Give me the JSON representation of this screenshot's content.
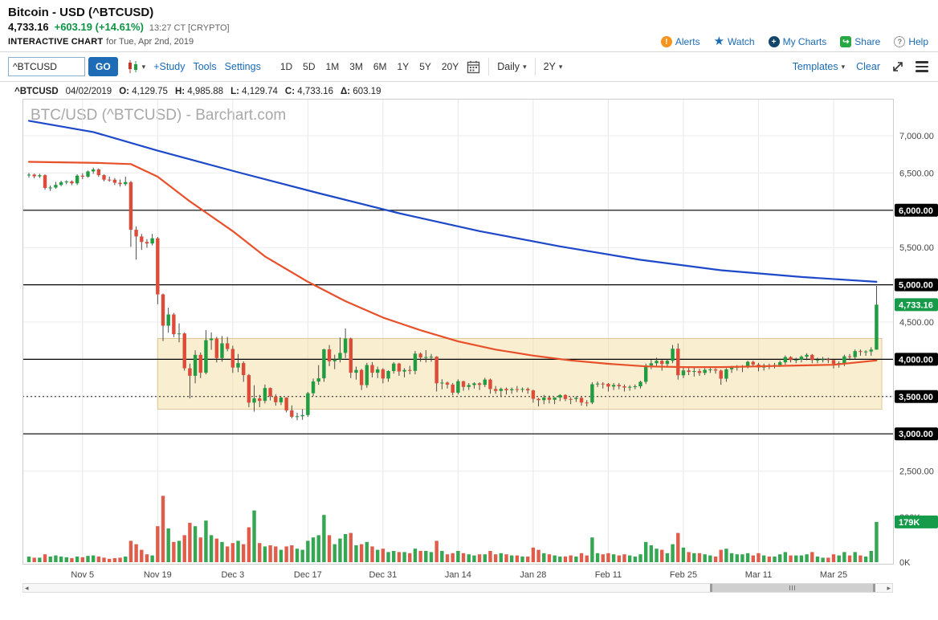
{
  "header": {
    "title": "Bitcoin - USD (^BTCUSD)",
    "price": "4,733.16",
    "change": "+603.19 (+14.61%)",
    "time_note": "13:27 CT [CRYPTO]",
    "section_label": "INTERACTIVE CHART",
    "section_date": "for Tue, Apr 2nd, 2019",
    "links": [
      {
        "label": "Alerts"
      },
      {
        "label": "Watch"
      },
      {
        "label": "My Charts"
      },
      {
        "label": "Share"
      },
      {
        "label": "Help"
      }
    ]
  },
  "toolbar": {
    "symbol_input": "^BTCUSD",
    "go_label": "GO",
    "study_label": "+Study",
    "tools_label": "Tools",
    "settings_label": "Settings",
    "ranges": [
      "1D",
      "5D",
      "1M",
      "3M",
      "6M",
      "1Y",
      "5Y",
      "20Y"
    ],
    "frequency": "Daily",
    "lookback": "2Y",
    "templates_label": "Templates",
    "clear_label": "Clear"
  },
  "ohlc": {
    "symbol": "^BTCUSD",
    "date": "04/02/2019",
    "o_label": "O:",
    "o": "4,129.75",
    "h_label": "H:",
    "h": "4,985.88",
    "l_label": "L:",
    "l": "4,129.74",
    "c_label": "C:",
    "c": "4,733.16",
    "d_label": "Δ:",
    "d": "603.19"
  },
  "colors": {
    "up": "#1f9d40",
    "down": "#dd4b39",
    "ma_slow_blue": "#1d49c9",
    "ma_fast_red": "#e8502a",
    "badge_green": "#169b4a",
    "badge_black": "#000000",
    "accent_blue": "#1a6bb5",
    "box_fill": "rgba(245,222,163,0.5)",
    "box_stroke": "#dcc globally"
  },
  "chart_data": {
    "type": "candlestick",
    "title": "BTC/USD (^BTCUSD) - Barchart.com",
    "frequency": "Daily",
    "price_axis": {
      "min": 2250,
      "max": 7490,
      "tick_step": 500
    },
    "y_labels": [
      {
        "value": 7000,
        "text": "7,000.00",
        "style": "plain"
      },
      {
        "value": 6500,
        "text": "6,500.00",
        "style": "plain"
      },
      {
        "value": 6000,
        "text": "6,000.00",
        "style": "black"
      },
      {
        "value": 5500,
        "text": "5,500.00",
        "style": "plain"
      },
      {
        "value": 5000,
        "text": "5,000.00",
        "style": "black"
      },
      {
        "value": 4733.16,
        "text": "4,733.16",
        "style": "green"
      },
      {
        "value": 4500,
        "text": "4,500.00",
        "style": "plain"
      },
      {
        "value": 4000,
        "text": "4,000.00",
        "style": "black"
      },
      {
        "value": 3500,
        "text": "3,500.00",
        "style": "black"
      },
      {
        "value": 3000,
        "text": "3,000.00",
        "style": "black"
      },
      {
        "value": 2500,
        "text": "2,500.00",
        "style": "plain"
      }
    ],
    "vol_labels": [
      {
        "vol": 200,
        "text": "200K",
        "style": "plain"
      },
      {
        "vol": 179,
        "text": "179K",
        "style": "green"
      },
      {
        "vol": 0,
        "text": "0K",
        "style": "plain"
      }
    ],
    "x_ticks": [
      {
        "i": 10,
        "label": "Nov 5"
      },
      {
        "i": 24,
        "label": "Nov 19"
      },
      {
        "i": 38,
        "label": "Dec 3"
      },
      {
        "i": 52,
        "label": "Dec 17"
      },
      {
        "i": 66,
        "label": "Dec 31"
      },
      {
        "i": 80,
        "label": "Jan 14"
      },
      {
        "i": 94,
        "label": "Jan 28"
      },
      {
        "i": 108,
        "label": "Feb 11"
      },
      {
        "i": 122,
        "label": "Feb 25"
      },
      {
        "i": 136,
        "label": "Mar 11"
      },
      {
        "i": 150,
        "label": "Mar 25"
      }
    ],
    "levels": {
      "solid_black": [
        6000,
        5000,
        4000,
        3000
      ],
      "dashed": [
        3500
      ]
    },
    "range_box": {
      "start_index": 24,
      "end_x": 1070,
      "price_top": 4280,
      "price_bottom": 3330
    },
    "overlays": {
      "blue_ma": [
        [
          0,
          7200
        ],
        [
          12,
          7050
        ],
        [
          24,
          6800
        ],
        [
          39,
          6510
        ],
        [
          54,
          6230
        ],
        [
          69,
          5960
        ],
        [
          84,
          5720
        ],
        [
          99,
          5515
        ],
        [
          114,
          5335
        ],
        [
          129,
          5195
        ],
        [
          144,
          5105
        ],
        [
          158,
          5040
        ]
      ],
      "red_ma": [
        [
          0,
          6650
        ],
        [
          13,
          6635
        ],
        [
          19,
          6620
        ],
        [
          24,
          6450
        ],
        [
          30,
          6120
        ],
        [
          38,
          5720
        ],
        [
          44,
          5380
        ],
        [
          52,
          5040
        ],
        [
          59,
          4780
        ],
        [
          66,
          4560
        ],
        [
          73,
          4390
        ],
        [
          80,
          4240
        ],
        [
          87,
          4130
        ],
        [
          94,
          4050
        ],
        [
          101,
          3985
        ],
        [
          108,
          3940
        ],
        [
          115,
          3905
        ],
        [
          122,
          3895
        ],
        [
          129,
          3895
        ],
        [
          136,
          3905
        ],
        [
          144,
          3918
        ],
        [
          150,
          3927
        ],
        [
          158,
          3985
        ]
      ]
    },
    "candles_format": [
      "open",
      "high",
      "low",
      "close",
      "volume_thousands"
    ],
    "candles": [
      [
        6470,
        6502,
        6438,
        6478,
        25
      ],
      [
        6478,
        6492,
        6428,
        6455,
        20
      ],
      [
        6455,
        6490,
        6433,
        6470,
        20
      ],
      [
        6470,
        6481,
        6275,
        6300,
        35
      ],
      [
        6300,
        6332,
        6258,
        6305,
        25
      ],
      [
        6305,
        6381,
        6288,
        6340,
        30
      ],
      [
        6340,
        6396,
        6322,
        6377,
        25
      ],
      [
        6377,
        6402,
        6348,
        6386,
        22
      ],
      [
        6386,
        6401,
        6338,
        6361,
        18
      ],
      [
        6361,
        6482,
        6339,
        6464,
        25
      ],
      [
        6464,
        6496,
        6418,
        6451,
        22
      ],
      [
        6451,
        6532,
        6438,
        6521,
        28
      ],
      [
        6521,
        6572,
        6488,
        6547,
        30
      ],
      [
        6547,
        6562,
        6448,
        6471,
        25
      ],
      [
        6471,
        6482,
        6388,
        6411,
        20
      ],
      [
        6411,
        6452,
        6383,
        6410,
        15
      ],
      [
        6410,
        6432,
        6338,
        6369,
        18
      ],
      [
        6369,
        6412,
        6318,
        6351,
        20
      ],
      [
        6351,
        6452,
        6328,
        6378,
        25
      ],
      [
        6378,
        6392,
        5508,
        5738,
        95
      ],
      [
        5738,
        5782,
        5338,
        5648,
        80
      ],
      [
        5648,
        5682,
        5468,
        5575,
        55
      ],
      [
        5575,
        5612,
        5498,
        5554,
        35
      ],
      [
        5554,
        5682,
        5528,
        5624,
        30
      ],
      [
        5624,
        5642,
        4738,
        4871,
        160
      ],
      [
        4871,
        4882,
        4244,
        4451,
        295
      ],
      [
        4451,
        4692,
        4358,
        4602,
        150
      ],
      [
        4602,
        4622,
        4298,
        4337,
        90
      ],
      [
        4337,
        4482,
        4228,
        4347,
        95
      ],
      [
        4347,
        4362,
        3848,
        3880,
        120
      ],
      [
        3880,
        3942,
        3475,
        3779,
        175
      ],
      [
        3779,
        4122,
        3678,
        4060,
        160
      ],
      [
        4060,
        4092,
        3748,
        3820,
        110
      ],
      [
        3820,
        4392,
        3798,
        4257,
        185
      ],
      [
        4257,
        4362,
        4128,
        4278,
        120
      ],
      [
        4278,
        4302,
        3958,
        4017,
        105
      ],
      [
        4017,
        4312,
        3968,
        4214,
        90
      ],
      [
        4214,
        4301,
        4108,
        4139,
        70
      ],
      [
        4139,
        4182,
        3818,
        3890,
        85
      ],
      [
        3890,
        4072,
        3828,
        3949,
        95
      ],
      [
        3949,
        3972,
        3698,
        3788,
        80
      ],
      [
        3788,
        3802,
        3358,
        3419,
        155
      ],
      [
        3419,
        3652,
        3298,
        3476,
        230
      ],
      [
        3476,
        3522,
        3358,
        3442,
        85
      ],
      [
        3442,
        3662,
        3408,
        3615,
        70
      ],
      [
        3615,
        3622,
        3448,
        3502,
        75
      ],
      [
        3502,
        3532,
        3378,
        3424,
        70
      ],
      [
        3424,
        3502,
        3388,
        3486,
        55
      ],
      [
        3486,
        3492,
        3288,
        3314,
        70
      ],
      [
        3314,
        3382,
        3208,
        3229,
        75
      ],
      [
        3229,
        3282,
        3183,
        3236,
        60
      ],
      [
        3236,
        3332,
        3188,
        3252,
        55
      ],
      [
        3252,
        3562,
        3228,
        3545,
        95
      ],
      [
        3545,
        3742,
        3508,
        3702,
        110
      ],
      [
        3702,
        3922,
        3658,
        3745,
        120
      ],
      [
        3745,
        4142,
        3698,
        4134,
        210
      ],
      [
        4134,
        4192,
        3908,
        3974,
        120
      ],
      [
        3974,
        4062,
        3868,
        3998,
        80
      ],
      [
        3998,
        4292,
        3958,
        4086,
        105
      ],
      [
        4086,
        4413,
        4018,
        4278,
        125
      ],
      [
        4278,
        4292,
        3748,
        3820,
        130
      ],
      [
        3820,
        3902,
        3728,
        3857,
        75
      ],
      [
        3857,
        3872,
        3588,
        3654,
        80
      ],
      [
        3654,
        3952,
        3618,
        3923,
        90
      ],
      [
        3923,
        3962,
        3758,
        3820,
        70
      ],
      [
        3820,
        3902,
        3748,
        3865,
        55
      ],
      [
        3865,
        3882,
        3678,
        3742,
        60
      ],
      [
        3742,
        3852,
        3698,
        3843,
        45
      ],
      [
        3843,
        3962,
        3808,
        3943,
        50
      ],
      [
        3943,
        3952,
        3778,
        3836,
        45
      ],
      [
        3836,
        3882,
        3758,
        3857,
        45
      ],
      [
        3857,
        3912,
        3798,
        3845,
        40
      ],
      [
        3845,
        4112,
        3798,
        4076,
        60
      ],
      [
        4076,
        4092,
        3968,
        4025,
        50
      ],
      [
        4025,
        4122,
        3958,
        4030,
        50
      ],
      [
        4030,
        4072,
        3968,
        4035,
        45
      ],
      [
        4035,
        4042,
        3568,
        3678,
        95
      ],
      [
        3678,
        3732,
        3598,
        3687,
        50
      ],
      [
        3687,
        3702,
        3608,
        3661,
        35
      ],
      [
        3661,
        3682,
        3518,
        3552,
        40
      ],
      [
        3552,
        3732,
        3528,
        3706,
        50
      ],
      [
        3706,
        3712,
        3578,
        3630,
        40
      ],
      [
        3630,
        3682,
        3588,
        3655,
        35
      ],
      [
        3655,
        3692,
        3608,
        3678,
        30
      ],
      [
        3678,
        3692,
        3588,
        3657,
        35
      ],
      [
        3657,
        3752,
        3628,
        3728,
        35
      ],
      [
        3728,
        3742,
        3538,
        3601,
        50
      ],
      [
        3601,
        3642,
        3538,
        3576,
        35
      ],
      [
        3576,
        3622,
        3508,
        3604,
        40
      ],
      [
        3604,
        3622,
        3528,
        3585,
        35
      ],
      [
        3585,
        3622,
        3538,
        3600,
        30
      ],
      [
        3600,
        3642,
        3558,
        3599,
        30
      ],
      [
        3599,
        3622,
        3558,
        3602,
        25
      ],
      [
        3602,
        3622,
        3538,
        3583,
        25
      ],
      [
        3583,
        3592,
        3418,
        3470,
        65
      ],
      [
        3470,
        3482,
        3368,
        3452,
        55
      ],
      [
        3452,
        3522,
        3398,
        3487,
        40
      ],
      [
        3487,
        3512,
        3408,
        3457,
        35
      ],
      [
        3457,
        3492,
        3398,
        3487,
        30
      ],
      [
        3487,
        3532,
        3438,
        3521,
        25
      ],
      [
        3521,
        3532,
        3438,
        3468,
        25
      ],
      [
        3468,
        3492,
        3398,
        3467,
        30
      ],
      [
        3467,
        3502,
        3428,
        3483,
        25
      ],
      [
        3483,
        3492,
        3378,
        3420,
        40
      ],
      [
        3420,
        3452,
        3368,
        3419,
        30
      ],
      [
        3419,
        3692,
        3398,
        3666,
        110
      ],
      [
        3666,
        3702,
        3628,
        3674,
        40
      ],
      [
        3674,
        3692,
        3608,
        3671,
        35
      ],
      [
        3671,
        3682,
        3568,
        3634,
        40
      ],
      [
        3634,
        3682,
        3588,
        3656,
        35
      ],
      [
        3656,
        3682,
        3598,
        3638,
        30
      ],
      [
        3638,
        3662,
        3568,
        3621,
        35
      ],
      [
        3621,
        3652,
        3578,
        3631,
        30
      ],
      [
        3631,
        3662,
        3598,
        3638,
        25
      ],
      [
        3638,
        3712,
        3608,
        3698,
        35
      ],
      [
        3698,
        3942,
        3668,
        3917,
        90
      ],
      [
        3917,
        3992,
        3868,
        3947,
        75
      ],
      [
        3947,
        4022,
        3898,
        3980,
        60
      ],
      [
        3980,
        3992,
        3848,
        3937,
        55
      ],
      [
        3937,
        4002,
        3898,
        3980,
        40
      ],
      [
        3980,
        4192,
        3948,
        4142,
        80
      ],
      [
        4142,
        4212,
        3728,
        3786,
        130
      ],
      [
        3786,
        3892,
        3748,
        3851,
        65
      ],
      [
        3851,
        3882,
        3788,
        3831,
        45
      ],
      [
        3831,
        3892,
        3768,
        3842,
        40
      ],
      [
        3842,
        3872,
        3778,
        3817,
        40
      ],
      [
        3817,
        3882,
        3788,
        3859,
        35
      ],
      [
        3859,
        3892,
        3818,
        3864,
        30
      ],
      [
        3864,
        3882,
        3808,
        3849,
        25
      ],
      [
        3849,
        3862,
        3658,
        3740,
        55
      ],
      [
        3740,
        3882,
        3698,
        3866,
        60
      ],
      [
        3866,
        3912,
        3818,
        3897,
        40
      ],
      [
        3897,
        3922,
        3848,
        3898,
        35
      ],
      [
        3898,
        3922,
        3828,
        3910,
        35
      ],
      [
        3910,
        3982,
        3878,
        3966,
        40
      ],
      [
        3966,
        3982,
        3898,
        3930,
        30
      ],
      [
        3930,
        3952,
        3838,
        3890,
        40
      ],
      [
        3890,
        3942,
        3848,
        3920,
        30
      ],
      [
        3920,
        3942,
        3868,
        3909,
        25
      ],
      [
        3909,
        3952,
        3878,
        3924,
        25
      ],
      [
        3924,
        3982,
        3898,
        3960,
        35
      ],
      [
        3960,
        4052,
        3928,
        4030,
        45
      ],
      [
        4030,
        4042,
        3958,
        3990,
        30
      ],
      [
        3990,
        4022,
        3948,
        3995,
        30
      ],
      [
        3995,
        4052,
        3958,
        4035,
        30
      ],
      [
        4035,
        4082,
        3988,
        4060,
        35
      ],
      [
        4060,
        4072,
        3948,
        3990,
        45
      ],
      [
        3990,
        4022,
        3948,
        3995,
        25
      ],
      [
        3995,
        4032,
        3958,
        4000,
        20
      ],
      [
        4000,
        4022,
        3948,
        3990,
        20
      ],
      [
        3990,
        4002,
        3878,
        3940,
        35
      ],
      [
        3940,
        3972,
        3888,
        3950,
        30
      ],
      [
        3950,
        4062,
        3908,
        4040,
        45
      ],
      [
        4040,
        4072,
        3988,
        4030,
        30
      ],
      [
        4030,
        4132,
        3998,
        4110,
        45
      ],
      [
        4110,
        4132,
        4048,
        4100,
        30
      ],
      [
        4100,
        4122,
        4048,
        4105,
        25
      ],
      [
        4105,
        4162,
        4048,
        4130,
        50
      ],
      [
        4129.75,
        4985.88,
        4129.74,
        4733.16,
        179
      ]
    ]
  }
}
